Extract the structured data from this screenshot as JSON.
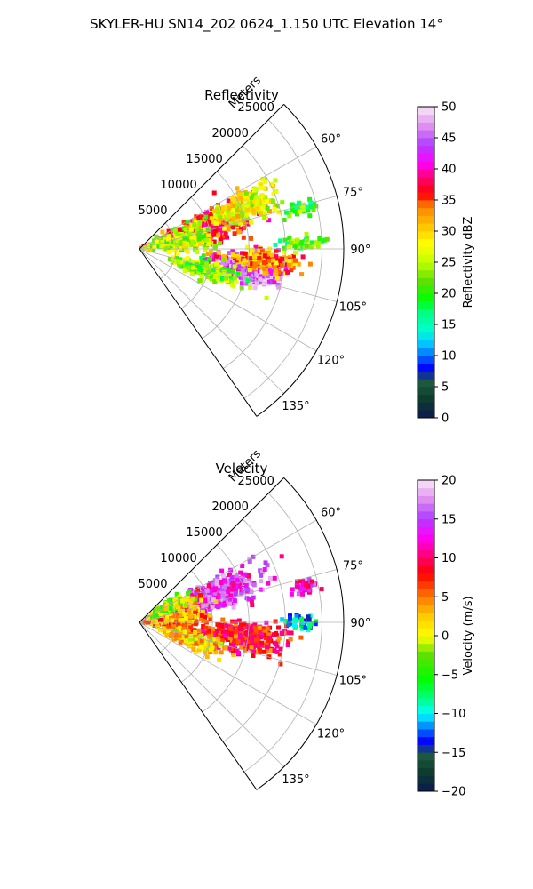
{
  "figure": {
    "suptitle": "SKYLER-HU  SN14_202  0624_1.150 UTC Elevation 14°"
  },
  "chart_data": [
    {
      "type": "heatmap",
      "projection": "polar-sector",
      "title": "Reflectivity",
      "radial_label": "Meters",
      "radial_ticks": [
        5000,
        10000,
        15000,
        20000,
        25000
      ],
      "radial_tick_labels": [
        "5000",
        "10000",
        "15000",
        "20000",
        "25000"
      ],
      "r_max": 28000,
      "azimuth_range": [
        45,
        145
      ],
      "azimuth_ticks": [
        60,
        75,
        90,
        105,
        120,
        135
      ],
      "azimuth_tick_labels": [
        "60°",
        "75°",
        "90°",
        "105°",
        "120°",
        "135°"
      ],
      "grid": true,
      "colorbar": {
        "label": "Reflectivity dBZ",
        "min": 0,
        "max": 50,
        "ticks": [
          0,
          5,
          10,
          15,
          20,
          25,
          30,
          35,
          40,
          45,
          50
        ],
        "tick_labels": [
          "0",
          "5",
          "10",
          "15",
          "20",
          "25",
          "30",
          "35",
          "40",
          "45",
          "50"
        ]
      }
    },
    {
      "type": "heatmap",
      "projection": "polar-sector",
      "title": "Velocity",
      "radial_label": "Meters",
      "radial_ticks": [
        5000,
        10000,
        15000,
        20000,
        25000
      ],
      "radial_tick_labels": [
        "5000",
        "10000",
        "15000",
        "20000",
        "25000"
      ],
      "r_max": 28000,
      "azimuth_range": [
        45,
        145
      ],
      "azimuth_ticks": [
        60,
        75,
        90,
        105,
        120,
        135
      ],
      "azimuth_tick_labels": [
        "60°",
        "75°",
        "90°",
        "105°",
        "120°",
        "135°"
      ],
      "grid": true,
      "colorbar": {
        "label": "Velocity (m/s)",
        "min": -20,
        "max": 20,
        "ticks": [
          -20,
          -15,
          -10,
          -5,
          0,
          5,
          10,
          15,
          20
        ],
        "tick_labels": [
          "−20",
          "−15",
          "−10",
          "−5",
          "0",
          "5",
          "10",
          "15",
          "20"
        ]
      }
    }
  ]
}
